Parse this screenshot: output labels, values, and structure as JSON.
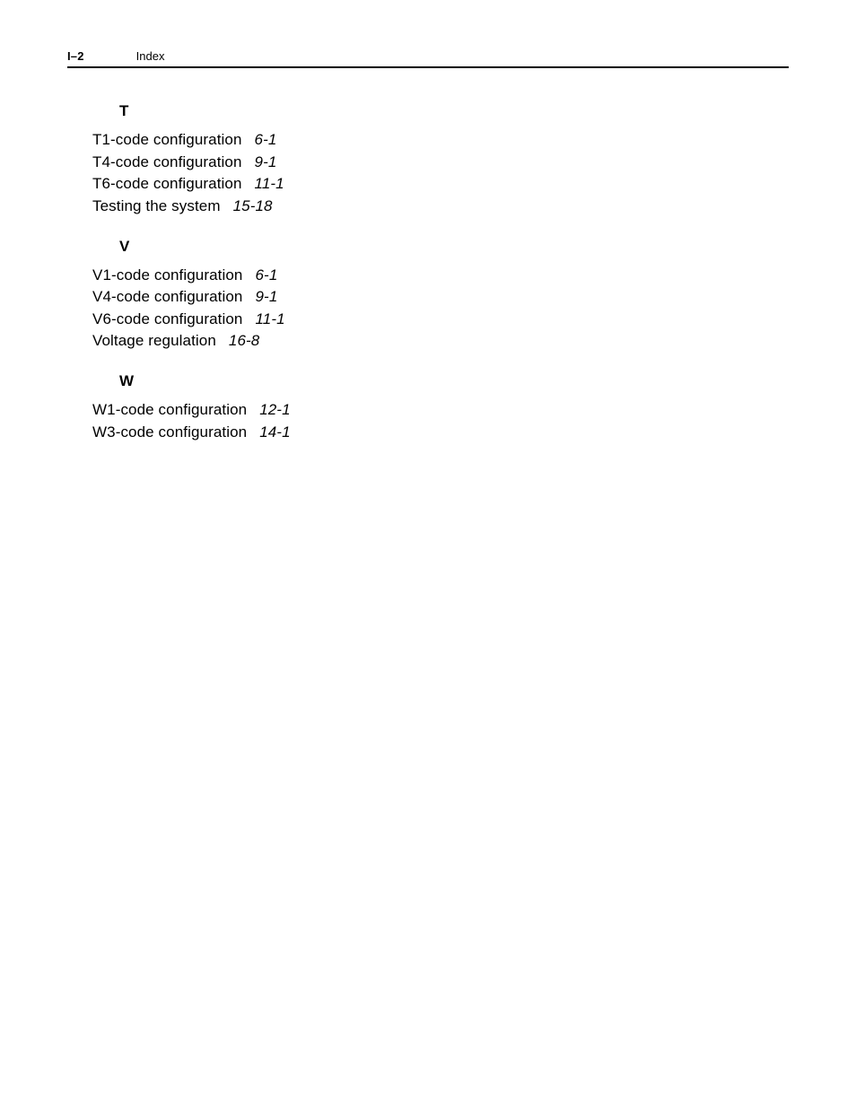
{
  "header": {
    "page_number": "I–2",
    "title": "Index"
  },
  "sections": [
    {
      "letter": "T",
      "entries": [
        {
          "term": "T1-code configuration",
          "ref": "6-1"
        },
        {
          "term": "T4-code configuration",
          "ref": "9-1"
        },
        {
          "term": "T6-code configuration",
          "ref": "11-1"
        },
        {
          "term": "Testing the system",
          "ref": "15-18"
        }
      ]
    },
    {
      "letter": "V",
      "entries": [
        {
          "term": "V1-code configuration",
          "ref": "6-1"
        },
        {
          "term": "V4-code configuration",
          "ref": "9-1"
        },
        {
          "term": "V6-code configuration",
          "ref": "11-1"
        },
        {
          "term": "Voltage regulation",
          "ref": "16-8"
        }
      ]
    },
    {
      "letter": "W",
      "entries": [
        {
          "term": "W1-code configuration",
          "ref": "12-1"
        },
        {
          "term": "W3-code configuration",
          "ref": "14-1"
        }
      ]
    }
  ]
}
